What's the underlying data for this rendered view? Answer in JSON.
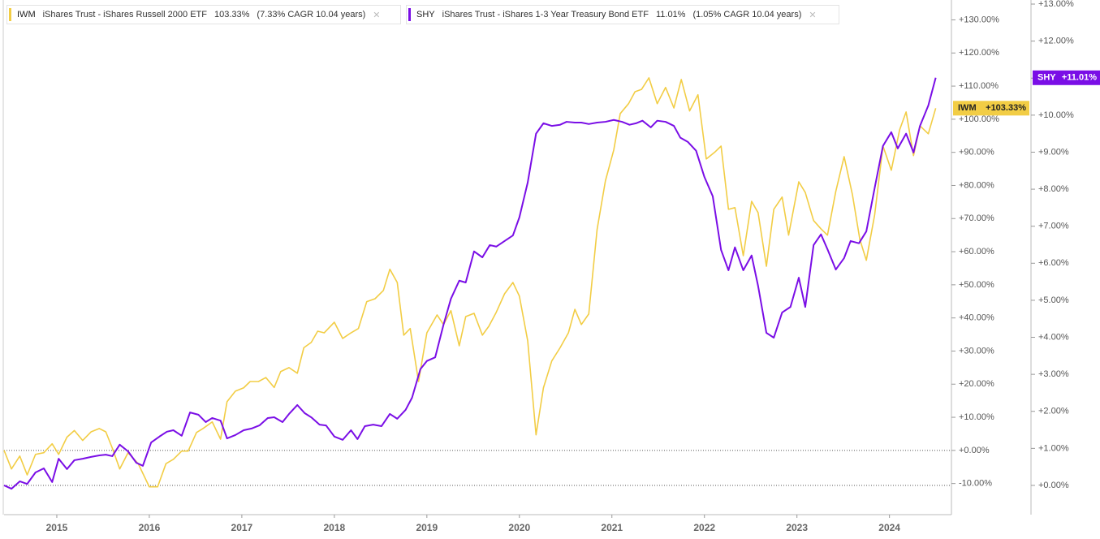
{
  "chart_data": {
    "type": "line",
    "xlim": [
      2014.43,
      2024.67
    ],
    "xticks": [
      2015,
      2016,
      2017,
      2018,
      2019,
      2020,
      2021,
      2022,
      2023,
      2024
    ],
    "ylim": [
      -19.4,
      136
    ],
    "yticks": [
      {
        "value": -10,
        "label": "-10.00%"
      },
      {
        "value": 0,
        "label": "+0.00%"
      },
      {
        "value": 10,
        "label": "+10.00%"
      },
      {
        "value": 20,
        "label": "+20.00%"
      },
      {
        "value": 30,
        "label": "+30.00%"
      },
      {
        "value": 40,
        "label": "+40.00%"
      },
      {
        "value": 50,
        "label": "+50.00%"
      },
      {
        "value": 60,
        "label": "+60.00%"
      },
      {
        "value": 70,
        "label": "+70.00%"
      },
      {
        "value": 80,
        "label": "+80.00%"
      },
      {
        "value": 90,
        "label": "+90.00%"
      },
      {
        "value": 100,
        "label": "+100.00%"
      },
      {
        "value": 110,
        "label": "+110.00%"
      },
      {
        "value": 120,
        "label": "+120.00%"
      },
      {
        "value": 130,
        "label": "+130.00%"
      }
    ],
    "y2lim": [
      -0.79,
      13.11
    ],
    "y2ticks": [
      {
        "value": 0,
        "label": "+0.00%"
      },
      {
        "value": 1,
        "label": "+1.00%"
      },
      {
        "value": 2,
        "label": "+2.00%"
      },
      {
        "value": 3,
        "label": "+3.00%"
      },
      {
        "value": 4,
        "label": "+4.00%"
      },
      {
        "value": 5,
        "label": "+5.00%"
      },
      {
        "value": 6,
        "label": "+6.00%"
      },
      {
        "value": 7,
        "label": "+7.00%"
      },
      {
        "value": 8,
        "label": "+8.00%"
      },
      {
        "value": 9,
        "label": "+9.00%"
      },
      {
        "value": 10,
        "label": "+10.00%"
      },
      {
        "value": 11,
        "label": "+11.00%"
      },
      {
        "value": 12,
        "label": "+12.00%"
      },
      {
        "value": 13,
        "label": "+13.00%"
      }
    ],
    "series": [
      {
        "ticker": "IWM",
        "name": "iShares Trust - iShares Russell 2000 ETF",
        "return_label": "103.33%",
        "cagr_label": "(7.33% CAGR 10.04 years)",
        "last_label": "+103.33%",
        "color": "#f2cd45",
        "x": [
          2014.43,
          2014.51,
          2014.6,
          2014.68,
          2014.77,
          2014.86,
          2014.95,
          2015.02,
          2015.11,
          2015.19,
          2015.28,
          2015.37,
          2015.46,
          2015.53,
          2015.6,
          2015.68,
          2015.77,
          2015.88,
          2016.0,
          2016.09,
          2016.18,
          2016.26,
          2016.35,
          2016.42,
          2016.51,
          2016.58,
          2016.68,
          2016.77,
          2016.84,
          2016.93,
          2017.02,
          2017.09,
          2017.18,
          2017.26,
          2017.35,
          2017.42,
          2017.51,
          2017.6,
          2017.67,
          2017.75,
          2017.82,
          2017.89,
          2018.0,
          2018.09,
          2018.18,
          2018.26,
          2018.35,
          2018.44,
          2018.53,
          2018.6,
          2018.68,
          2018.75,
          2018.82,
          2018.91,
          2019.0,
          2019.11,
          2019.18,
          2019.26,
          2019.35,
          2019.42,
          2019.51,
          2019.6,
          2019.67,
          2019.75,
          2019.84,
          2019.93,
          2020.0,
          2020.09,
          2020.18,
          2020.26,
          2020.35,
          2020.44,
          2020.53,
          2020.6,
          2020.67,
          2020.75,
          2020.84,
          2020.93,
          2021.02,
          2021.09,
          2021.18,
          2021.25,
          2021.32,
          2021.4,
          2021.49,
          2021.58,
          2021.67,
          2021.75,
          2021.84,
          2021.93,
          2022.02,
          2022.11,
          2022.18,
          2022.26,
          2022.33,
          2022.42,
          2022.51,
          2022.58,
          2022.67,
          2022.75,
          2022.84,
          2022.91,
          2023.02,
          2023.09,
          2023.18,
          2023.26,
          2023.33,
          2023.42,
          2023.51,
          2023.6,
          2023.68,
          2023.75,
          2023.84,
          2023.93,
          2024.02,
          2024.11,
          2024.18,
          2024.26,
          2024.33,
          2024.42,
          2024.5
        ],
        "values": [
          0,
          -5.6,
          -1.7,
          -7.4,
          -1.2,
          -0.7,
          2,
          -1.2,
          4,
          6,
          3,
          5.6,
          6.6,
          5.6,
          0.7,
          -5.6,
          -0.7,
          -4,
          -11,
          -11,
          -4,
          -2.7,
          -0.2,
          -0.2,
          5.4,
          6.6,
          8.6,
          3.4,
          14.7,
          17.9,
          18.9,
          20.8,
          20.8,
          22,
          19,
          23.8,
          25,
          23.3,
          31,
          32.6,
          36,
          35.5,
          38.7,
          33.8,
          35.5,
          36.8,
          44.9,
          45.8,
          48.3,
          54.7,
          50.7,
          34.8,
          36.8,
          20.8,
          35.5,
          40.9,
          38,
          42.2,
          31.6,
          40.4,
          41.4,
          34.8,
          37.5,
          41.7,
          47.3,
          50.7,
          46.6,
          33.1,
          4.7,
          18.9,
          27,
          31,
          35.5,
          42.6,
          38,
          41.2,
          66.7,
          81.4,
          90.7,
          101.7,
          104.7,
          108.3,
          109,
          112.5,
          104.7,
          109.6,
          103.4,
          112,
          102.5,
          107.4,
          88,
          90,
          91.9,
          72.8,
          73.3,
          58.8,
          75.2,
          71.8,
          55.6,
          72.8,
          76.5,
          65,
          81.1,
          77.9,
          69.4,
          66.9,
          65,
          78.2,
          88.7,
          77.2,
          63.7,
          57.4,
          71.1,
          91.9,
          84.6,
          96.8,
          102.2,
          89,
          98,
          95.6,
          103.33
        ]
      },
      {
        "ticker": "SHY",
        "name": "iShares Trust - iShares 1-3 Year Treasury Bond ETF",
        "return_label": "11.01%",
        "cagr_label": "(1.05% CAGR 10.04 years)",
        "last_label": "+11.01%",
        "color": "#7a0ee6",
        "axis": "y2",
        "x": [
          2014.43,
          2014.51,
          2014.6,
          2014.68,
          2014.77,
          2014.86,
          2014.95,
          2015.02,
          2015.11,
          2015.19,
          2015.28,
          2015.37,
          2015.46,
          2015.53,
          2015.6,
          2015.68,
          2015.77,
          2015.86,
          2015.93,
          2016.02,
          2016.11,
          2016.19,
          2016.26,
          2016.35,
          2016.44,
          2016.53,
          2016.61,
          2016.68,
          2016.77,
          2016.84,
          2016.93,
          2017.02,
          2017.11,
          2017.19,
          2017.28,
          2017.35,
          2017.44,
          2017.51,
          2017.6,
          2017.68,
          2017.75,
          2017.84,
          2017.91,
          2018.0,
          2018.09,
          2018.18,
          2018.25,
          2018.33,
          2018.42,
          2018.51,
          2018.6,
          2018.68,
          2018.77,
          2018.84,
          2018.93,
          2019.0,
          2019.09,
          2019.18,
          2019.26,
          2019.35,
          2019.42,
          2019.51,
          2019.6,
          2019.68,
          2019.75,
          2019.84,
          2019.93,
          2020.0,
          2020.09,
          2020.18,
          2020.26,
          2020.35,
          2020.44,
          2020.51,
          2020.6,
          2020.67,
          2020.75,
          2020.84,
          2020.93,
          2021.02,
          2021.11,
          2021.19,
          2021.26,
          2021.33,
          2021.42,
          2021.49,
          2021.58,
          2021.67,
          2021.74,
          2021.82,
          2021.91,
          2022.0,
          2022.09,
          2022.18,
          2022.26,
          2022.33,
          2022.42,
          2022.51,
          2022.58,
          2022.67,
          2022.75,
          2022.84,
          2022.93,
          2023.02,
          2023.09,
          2023.18,
          2023.26,
          2023.33,
          2023.42,
          2023.51,
          2023.58,
          2023.67,
          2023.75,
          2023.84,
          2023.93,
          2024.02,
          2024.09,
          2024.18,
          2024.26,
          2024.33,
          2024.42,
          2024.5
        ],
        "values": [
          0,
          -0.09,
          0.11,
          0.04,
          0.35,
          0.46,
          0.09,
          0.72,
          0.44,
          0.68,
          0.72,
          0.77,
          0.81,
          0.83,
          0.79,
          1.1,
          0.92,
          0.61,
          0.53,
          1.16,
          1.32,
          1.45,
          1.49,
          1.34,
          1.97,
          1.91,
          1.71,
          1.82,
          1.75,
          1.27,
          1.36,
          1.49,
          1.54,
          1.62,
          1.82,
          1.84,
          1.71,
          1.93,
          2.17,
          1.95,
          1.84,
          1.64,
          1.62,
          1.32,
          1.23,
          1.49,
          1.25,
          1.6,
          1.64,
          1.6,
          1.93,
          1.8,
          2.04,
          2.37,
          3.14,
          3.36,
          3.46,
          4.34,
          5.04,
          5.53,
          5.48,
          6.32,
          6.16,
          6.49,
          6.45,
          6.6,
          6.75,
          7.24,
          8.18,
          9.5,
          9.78,
          9.71,
          9.74,
          9.82,
          9.8,
          9.8,
          9.76,
          9.8,
          9.82,
          9.87,
          9.82,
          9.74,
          9.78,
          9.85,
          9.67,
          9.85,
          9.82,
          9.71,
          9.39,
          9.28,
          9.04,
          8.33,
          7.81,
          6.36,
          5.81,
          6.43,
          5.81,
          6.21,
          5.39,
          4.12,
          3.99,
          4.67,
          4.82,
          5.61,
          4.82,
          6.49,
          6.78,
          6.38,
          5.83,
          6.14,
          6.6,
          6.54,
          6.86,
          8.03,
          9.17,
          9.54,
          9.1,
          9.5,
          8.99,
          9.71,
          10.26,
          11.01
        ]
      }
    ]
  }
}
